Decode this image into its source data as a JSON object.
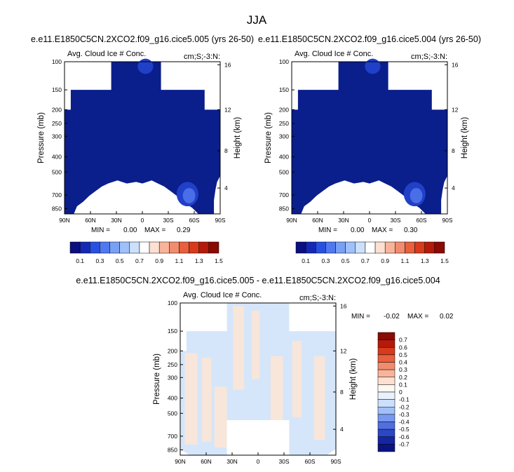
{
  "figure": {
    "title": "JJA"
  },
  "chart_data": [
    {
      "type": "heatmap",
      "id": "panel-a",
      "case_title": "e.e11.E1850C5CN.2XCO2.f09_g16.cice5.005 (yrs 26-50)",
      "left_label": "Avg. Cloud Ice # Conc.",
      "right_label": "cm;S;-3:N:",
      "xlabel": "",
      "ylabel": "Pressure (mb)",
      "ylabel_right": "Height (km)",
      "x_ticks": [
        "90N",
        "60N",
        "30N",
        "0",
        "30S",
        "60S",
        "90S"
      ],
      "y_ticks": [
        "100",
        "150",
        "200",
        "250",
        "300",
        "400",
        "500",
        "700",
        "850"
      ],
      "height_ticks": [
        "16",
        "12",
        "8",
        "4"
      ],
      "stats": {
        "min_label": "MIN =",
        "min": "0.00",
        "max_label": "MAX =",
        "max": "0.29"
      },
      "colorbar_levels": [
        "0.1",
        "0.3",
        "0.5",
        "0.7",
        "0.9",
        "1.1",
        "1.3",
        "1.5"
      ]
    },
    {
      "type": "heatmap",
      "id": "panel-b",
      "case_title": "e.e11.E1850C5CN.2XCO2.f09_g16.cice5.004 (yrs 26-50)",
      "left_label": "Avg. Cloud Ice # Conc.",
      "right_label": "cm;S;-3:N:",
      "xlabel": "",
      "ylabel": "Pressure (mb)",
      "ylabel_right": "Height (km)",
      "x_ticks": [
        "90N",
        "60N",
        "30N",
        "0",
        "30S",
        "60S",
        "90S"
      ],
      "y_ticks": [
        "100",
        "150",
        "200",
        "250",
        "300",
        "400",
        "500",
        "700",
        "850"
      ],
      "height_ticks": [
        "16",
        "12",
        "8",
        "4"
      ],
      "stats": {
        "min_label": "MIN =",
        "min": "0.00",
        "max_label": "MAX =",
        "max": "0.30"
      },
      "colorbar_levels": [
        "0.1",
        "0.3",
        "0.5",
        "0.7",
        "0.9",
        "1.1",
        "1.3",
        "1.5"
      ]
    },
    {
      "type": "heatmap",
      "id": "panel-diff",
      "case_title": "e.e11.E1850C5CN.2XCO2.f09_g16.cice5.005 - e.e11.E1850C5CN.2XCO2.f09_g16.cice5.004",
      "left_label": "Avg. Cloud Ice # Conc.",
      "right_label": "cm;S;-3:N:",
      "xlabel": "",
      "ylabel": "Pressure (mb)",
      "ylabel_right": "Height (km)",
      "x_ticks": [
        "90N",
        "60N",
        "30N",
        "0",
        "30S",
        "60S",
        "90S"
      ],
      "y_ticks": [
        "100",
        "150",
        "200",
        "250",
        "300",
        "400",
        "500",
        "700",
        "850"
      ],
      "height_ticks": [
        "16",
        "12",
        "8",
        "4"
      ],
      "stats": {
        "min_label": "MIN =",
        "min": "-0.02",
        "max_label": "MAX =",
        "max": "0.02"
      },
      "colorbar_levels": [
        "0.7",
        "0.6",
        "0.5",
        "0.4",
        "0.3",
        "0.2",
        "0.1",
        "0",
        "-0.1",
        "-0.2",
        "-0.3",
        "-0.4",
        "-0.5",
        "-0.6",
        "-0.7"
      ]
    }
  ],
  "colors": {
    "level1": "#0a1e8c",
    "level2": "#2040c8",
    "level3": "#4a6ee8",
    "diff_pos": "#fce6d6",
    "diff_neg": "#d6e6fa",
    "seq_scale": [
      "#0b0f80",
      "#1428b4",
      "#2850e0",
      "#5078f0",
      "#78a0f5",
      "#a0c0fa",
      "#cce0fc",
      "#ffffff",
      "#fde0d2",
      "#f8b49a",
      "#f28c6e",
      "#e8603e",
      "#d83a1c",
      "#b41a0a",
      "#8a0a04"
    ],
    "div_scale": [
      "#8a0a04",
      "#b41a0a",
      "#d83a1c",
      "#e8603e",
      "#f28c6e",
      "#f8b49a",
      "#fde0d2",
      "#fff8f2",
      "#e8f2fc",
      "#cce0fc",
      "#a0c0fa",
      "#7898f0",
      "#5070e0",
      "#2c46c4",
      "#1426a0",
      "#0a1480"
    ]
  }
}
